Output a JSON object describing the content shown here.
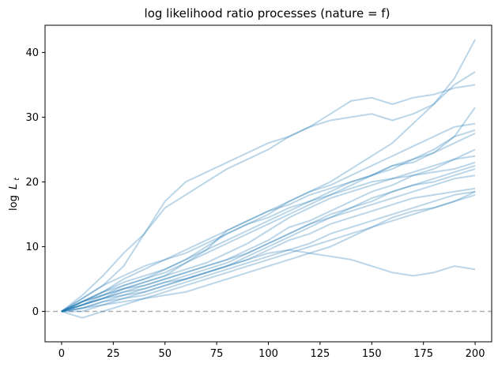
{
  "chart_data": {
    "type": "line",
    "title": "log likelihood ratio processes (nature = f)",
    "xlabel": "",
    "ylabel_main": "log",
    "ylabel_sub": "t",
    "ylabel_var": "L",
    "xlim": [
      -8,
      208
    ],
    "ylim": [
      -4.7,
      44.2
    ],
    "xticks": [
      0,
      25,
      50,
      75,
      100,
      125,
      150,
      175,
      200
    ],
    "yticks": [
      0,
      10,
      20,
      30,
      40
    ],
    "grid": false,
    "line_color": "#1f77b4",
    "line_alpha": 0.3,
    "reference_line": {
      "y": 0,
      "style": "dashed",
      "color": "#b0b0b0"
    },
    "x": [
      0,
      10,
      20,
      30,
      40,
      50,
      60,
      70,
      80,
      90,
      100,
      110,
      120,
      130,
      140,
      150,
      160,
      170,
      180,
      190,
      200
    ],
    "series": [
      {
        "values": [
          0,
          1.5,
          2.5,
          3.5,
          4.5,
          5.5,
          7.5,
          9.5,
          12.5,
          14,
          15.5,
          17,
          18.5,
          20,
          22,
          24,
          26,
          29,
          32,
          36,
          42
        ]
      },
      {
        "values": [
          0,
          2.5,
          5.5,
          9,
          12,
          16,
          18,
          20,
          22,
          23.5,
          25,
          27,
          28.5,
          30.5,
          32.5,
          33,
          32,
          33,
          33.5,
          34.5,
          35
        ]
      },
      {
        "values": [
          0,
          2,
          4,
          7,
          12,
          17,
          20,
          21.5,
          23,
          24.5,
          26,
          27,
          28.5,
          29.5,
          30,
          30.5,
          29.5,
          30.5,
          32,
          35,
          37
        ]
      },
      {
        "values": [
          0,
          1.5,
          3,
          5,
          6.5,
          8,
          9,
          10.5,
          12,
          13.5,
          14.5,
          16,
          17,
          18.5,
          20,
          21,
          22.5,
          23.5,
          24.5,
          27,
          31.5
        ]
      },
      {
        "values": [
          0,
          1,
          2.5,
          4,
          5,
          6.5,
          8,
          10,
          12,
          13.5,
          15,
          17,
          18.5,
          19.5,
          21,
          22.5,
          24,
          25.5,
          27,
          28.5,
          29
        ]
      },
      {
        "values": [
          0,
          1.5,
          3,
          4,
          5,
          6,
          7.5,
          9,
          10.5,
          12,
          13.5,
          15,
          16.5,
          18,
          19.5,
          21,
          22.5,
          23,
          24.5,
          26,
          27.5
        ]
      },
      {
        "values": [
          0,
          1,
          2,
          3.5,
          4.5,
          5.5,
          6.5,
          7.5,
          9,
          10.5,
          12.5,
          14.5,
          16,
          17.5,
          18.5,
          19.5,
          20.5,
          21.5,
          22.5,
          23.5,
          25
        ]
      },
      {
        "values": [
          0,
          1.5,
          2.5,
          3.5,
          4,
          5,
          6,
          7,
          8,
          9.5,
          11,
          13,
          14,
          15.5,
          17,
          18.5,
          19.5,
          21,
          22,
          23.5,
          24
        ]
      },
      {
        "values": [
          0,
          0.5,
          1.5,
          2.5,
          3.5,
          4.5,
          5.5,
          6.5,
          7.5,
          9,
          10.5,
          12,
          13.5,
          14.5,
          16,
          17,
          18.5,
          19.5,
          20,
          21,
          22
        ]
      },
      {
        "values": [
          0,
          1,
          2,
          3,
          3.5,
          4.5,
          5,
          6,
          7,
          8.5,
          10,
          11.5,
          13,
          14.5,
          15.5,
          16.5,
          17.5,
          18.5,
          19.5,
          20.5,
          21
        ]
      },
      {
        "values": [
          0,
          0.5,
          1.5,
          2,
          3,
          4,
          5,
          6,
          7,
          8,
          9.5,
          11,
          12,
          13.5,
          14.5,
          15.5,
          16.5,
          17.5,
          18,
          18.5,
          19
        ]
      },
      {
        "values": [
          0,
          1.5,
          3,
          4.5,
          5.5,
          6.5,
          8,
          9.5,
          11,
          12.5,
          14,
          15.5,
          17,
          18,
          19,
          20,
          20.5,
          21,
          21.5,
          22,
          23
        ]
      },
      {
        "values": [
          0,
          0,
          1,
          2,
          2.5,
          3.5,
          4.5,
          5.5,
          6.5,
          7.5,
          8.5,
          9.5,
          10.5,
          12,
          13,
          14,
          15,
          16,
          17,
          18,
          18.5
        ]
      },
      {
        "values": [
          0,
          1,
          2,
          3,
          4,
          5,
          6,
          7,
          8,
          9,
          10.5,
          12,
          13.5,
          15,
          16,
          17.5,
          18.5,
          19.5,
          20.5,
          21.5,
          22.5
        ]
      },
      {
        "values": [
          0,
          -1,
          0,
          1,
          2,
          3,
          4,
          5,
          6,
          7,
          8,
          9,
          10,
          11,
          12,
          13,
          14,
          15,
          16,
          17,
          18
        ]
      },
      {
        "values": [
          0,
          0.5,
          1,
          1.5,
          2,
          2.5,
          3,
          4,
          5,
          6,
          7,
          8,
          9,
          10,
          11.5,
          13,
          14.5,
          15.5,
          16,
          17,
          18.5
        ]
      },
      {
        "values": [
          0,
          1,
          2,
          2.5,
          3,
          4,
          5,
          6,
          7,
          8,
          9,
          9.5,
          9,
          8.5,
          8,
          7,
          6,
          5.5,
          6,
          7,
          6.5
        ]
      },
      {
        "values": [
          0,
          2,
          4,
          5.5,
          7,
          8,
          9.5,
          11,
          12.5,
          14,
          15.5,
          16.5,
          18,
          19,
          20,
          21,
          22,
          23.5,
          25,
          27,
          28
        ]
      }
    ]
  }
}
